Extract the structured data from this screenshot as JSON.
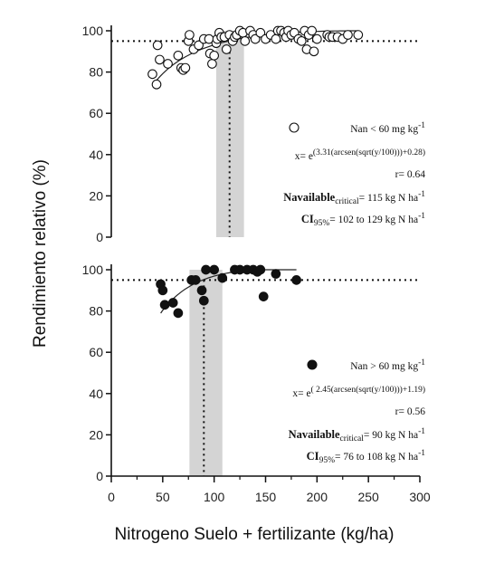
{
  "xlabel": "Nitrogeno Suelo + fertilizante (kg/ha)",
  "ylabel": "Rendimiento relativo (%)",
  "chart_data": [
    {
      "type": "scatter",
      "panel": "top",
      "marker": "open-circle",
      "xlim": [
        0,
        300
      ],
      "ylim": [
        0,
        100
      ],
      "x_ticks": [
        "0",
        "50",
        "100",
        "150",
        "200",
        "250",
        "300"
      ],
      "y_ticks": [
        "0",
        "20",
        "40",
        "60",
        "80",
        "100"
      ],
      "threshold_y": 95,
      "critical_x": 115,
      "ci": [
        102,
        129
      ],
      "legend": "Nan < 60 mg kg",
      "legend_sup": "-1",
      "equation_prefix": "x= e",
      "equation_exp": "(3.31(arcsen(sqrt(y/100)))+0.28)",
      "r": "r= 0.64",
      "critical_label": "Navailable",
      "critical_sub": "critical",
      "critical_value": "= 115 kg N ha",
      "critical_sup": "-1",
      "ci_label": "CI",
      "ci_sub": "95%",
      "ci_value": "= 102 to 129 kg N ha",
      "ci_sup": "-1",
      "curve": {
        "a": 3.31,
        "b": 0.28
      },
      "points": [
        [
          40,
          79
        ],
        [
          44,
          74
        ],
        [
          45,
          93
        ],
        [
          47,
          86
        ],
        [
          55,
          84
        ],
        [
          65,
          88
        ],
        [
          68,
          82
        ],
        [
          70,
          81
        ],
        [
          72,
          82
        ],
        [
          75,
          95
        ],
        [
          76,
          98
        ],
        [
          80,
          91
        ],
        [
          85,
          93
        ],
        [
          90,
          96
        ],
        [
          95,
          96
        ],
        [
          96,
          89
        ],
        [
          98,
          84
        ],
        [
          100,
          88
        ],
        [
          102,
          94
        ],
        [
          103,
          96
        ],
        [
          105,
          99
        ],
        [
          107,
          97
        ],
        [
          110,
          97
        ],
        [
          112,
          91
        ],
        [
          115,
          98
        ],
        [
          118,
          95
        ],
        [
          120,
          97
        ],
        [
          122,
          98
        ],
        [
          125,
          100
        ],
        [
          128,
          99
        ],
        [
          130,
          95
        ],
        [
          135,
          100
        ],
        [
          138,
          98
        ],
        [
          140,
          96
        ],
        [
          145,
          99
        ],
        [
          150,
          96
        ],
        [
          155,
          98
        ],
        [
          160,
          96
        ],
        [
          162,
          100
        ],
        [
          165,
          100
        ],
        [
          168,
          99
        ],
        [
          170,
          97
        ],
        [
          172,
          100
        ],
        [
          175,
          98
        ],
        [
          178,
          99
        ],
        [
          182,
          96
        ],
        [
          185,
          95
        ],
        [
          188,
          100
        ],
        [
          190,
          91
        ],
        [
          192,
          98
        ],
        [
          195,
          100
        ],
        [
          197,
          90
        ],
        [
          200,
          96
        ],
        [
          210,
          98
        ],
        [
          212,
          97
        ],
        [
          215,
          97
        ],
        [
          220,
          97
        ],
        [
          225,
          96
        ],
        [
          230,
          98
        ],
        [
          240,
          98
        ]
      ]
    },
    {
      "type": "scatter",
      "panel": "bottom",
      "marker": "filled-circle",
      "xlim": [
        0,
        300
      ],
      "ylim": [
        0,
        100
      ],
      "x_ticks": [
        "0",
        "50",
        "100",
        "150",
        "200",
        "250",
        "300"
      ],
      "y_ticks": [
        "0",
        "20",
        "40",
        "60",
        "80",
        "100"
      ],
      "threshold_y": 95,
      "critical_x": 90,
      "ci": [
        76,
        108
      ],
      "legend": "Nan > 60 mg kg",
      "legend_sup": "-1",
      "equation_prefix": "x= e",
      "equation_exp": "( 2.45(arcsen(sqrt(y/100)))+1.19)",
      "r": "r= 0.56",
      "critical_label": "Navailable",
      "critical_sub": "critical",
      "critical_value": "= 90 kg N ha",
      "critical_sup": "-1",
      "ci_label": "CI",
      "ci_sub": "95%",
      "ci_value": "= 76 to 108 kg N ha",
      "ci_sup": "-1",
      "curve": {
        "a": 2.45,
        "b": 1.19
      },
      "points": [
        [
          48,
          93
        ],
        [
          50,
          90
        ],
        [
          52,
          83
        ],
        [
          60,
          84
        ],
        [
          65,
          79
        ],
        [
          78,
          95
        ],
        [
          82,
          95
        ],
        [
          88,
          90
        ],
        [
          90,
          85
        ],
        [
          92,
          100
        ],
        [
          100,
          100
        ],
        [
          108,
          96
        ],
        [
          120,
          100
        ],
        [
          125,
          100
        ],
        [
          132,
          100
        ],
        [
          138,
          100
        ],
        [
          142,
          99
        ],
        [
          145,
          100
        ],
        [
          148,
          87
        ],
        [
          160,
          98
        ],
        [
          180,
          95
        ]
      ]
    }
  ]
}
